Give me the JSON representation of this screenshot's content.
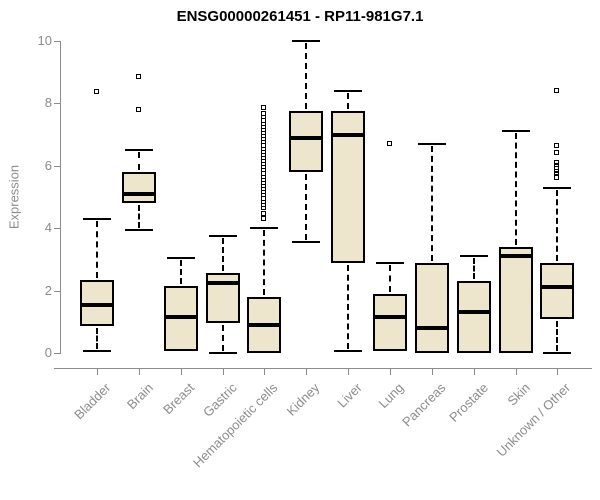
{
  "chart_data": {
    "type": "boxplot",
    "title": "ENSG00000261451 - RP11-981G7.1",
    "ylabel": "Expression",
    "xlabel": "",
    "ylim": [
      0,
      10
    ],
    "yticks": [
      0,
      2,
      4,
      6,
      8,
      10
    ],
    "grid": "off",
    "legend": "none",
    "colors": {
      "box_fill": "#ede6cc",
      "box_border": "#000000",
      "axis": "#8c8c8c",
      "title": "#000000"
    },
    "categories": [
      "Bladder",
      "Brain",
      "Breast",
      "Gastric",
      "Hematopoietic cells",
      "Kidney",
      "Liver",
      "Lung",
      "Pancreas",
      "Prostate",
      "Skin",
      "Unknown / Other"
    ],
    "series": [
      {
        "category": "Bladder",
        "whisker_low": 0.05,
        "q1": 0.85,
        "median": 1.55,
        "q3": 2.35,
        "whisker_high": 4.3,
        "outliers": [
          8.35
        ]
      },
      {
        "category": "Brain",
        "whisker_low": 3.95,
        "q1": 4.8,
        "median": 5.1,
        "q3": 5.8,
        "whisker_high": 6.5,
        "outliers": [
          7.8,
          8.85
        ]
      },
      {
        "category": "Breast",
        "whisker_low": 0.05,
        "q1": 0.05,
        "median": 1.15,
        "q3": 2.15,
        "whisker_high": 3.05,
        "outliers": []
      },
      {
        "category": "Gastric",
        "whisker_low": 0.0,
        "q1": 0.95,
        "median": 2.25,
        "q3": 2.55,
        "whisker_high": 3.75,
        "outliers": []
      },
      {
        "category": "Hematopoietic cells",
        "whisker_low": 0.0,
        "q1": 0.0,
        "median": 0.9,
        "q3": 1.8,
        "whisker_high": 4.0,
        "outliers": [
          4.3,
          4.45,
          4.65,
          4.75,
          4.85,
          4.95,
          5.05,
          5.15,
          5.25,
          5.35,
          5.45,
          5.55,
          5.65,
          5.75,
          5.85,
          5.95,
          6.05,
          6.15,
          6.25,
          6.35,
          6.45,
          6.55,
          6.65,
          6.75,
          6.85,
          6.95,
          7.05,
          7.15,
          7.25,
          7.35,
          7.45,
          7.55,
          7.65,
          7.85
        ]
      },
      {
        "category": "Kidney",
        "whisker_low": 3.55,
        "q1": 5.8,
        "median": 6.9,
        "q3": 7.75,
        "whisker_high": 10.0,
        "outliers": []
      },
      {
        "category": "Liver",
        "whisker_low": 0.05,
        "q1": 2.9,
        "median": 7.0,
        "q3": 7.75,
        "whisker_high": 8.4,
        "outliers": []
      },
      {
        "category": "Lung",
        "whisker_low": 0.05,
        "q1": 0.05,
        "median": 1.15,
        "q3": 1.9,
        "whisker_high": 2.9,
        "outliers": [
          6.7
        ]
      },
      {
        "category": "Pancreas",
        "whisker_low": 0.0,
        "q1": 0.0,
        "median": 0.8,
        "q3": 2.9,
        "whisker_high": 6.7,
        "outliers": []
      },
      {
        "category": "Prostate",
        "whisker_low": 0.0,
        "q1": 0.0,
        "median": 1.3,
        "q3": 2.3,
        "whisker_high": 3.1,
        "outliers": []
      },
      {
        "category": "Skin",
        "whisker_low": 0.0,
        "q1": 0.0,
        "median": 3.1,
        "q3": 3.4,
        "whisker_high": 7.1,
        "outliers": []
      },
      {
        "category": "Unknown / Other",
        "whisker_low": 0.0,
        "q1": 1.1,
        "median": 2.1,
        "q3": 2.9,
        "whisker_high": 5.3,
        "outliers": [
          8.4,
          6.65,
          6.4,
          6.1,
          6.0,
          5.95,
          5.9,
          5.8,
          5.75,
          5.7,
          5.65,
          5.6
        ]
      }
    ]
  }
}
